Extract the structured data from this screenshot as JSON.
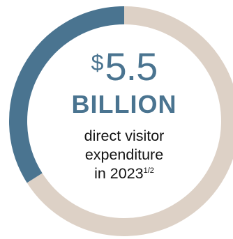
{
  "chart_data": {
    "type": "pie",
    "style": "donut",
    "slices": [
      {
        "share": 0.66,
        "color": "#ddd1c6"
      },
      {
        "share": 0.34,
        "color": "#4a7490"
      }
    ],
    "center": {
      "currency": "$",
      "amount": "5.5",
      "unit": "BILLION",
      "description_lines": [
        "direct visitor",
        "expenditure",
        "in 2023"
      ],
      "footnote": "1/2"
    }
  },
  "colors": {
    "accent": "#4a7490",
    "ring_base": "#ddd1c6",
    "text_dark": "#111111"
  }
}
